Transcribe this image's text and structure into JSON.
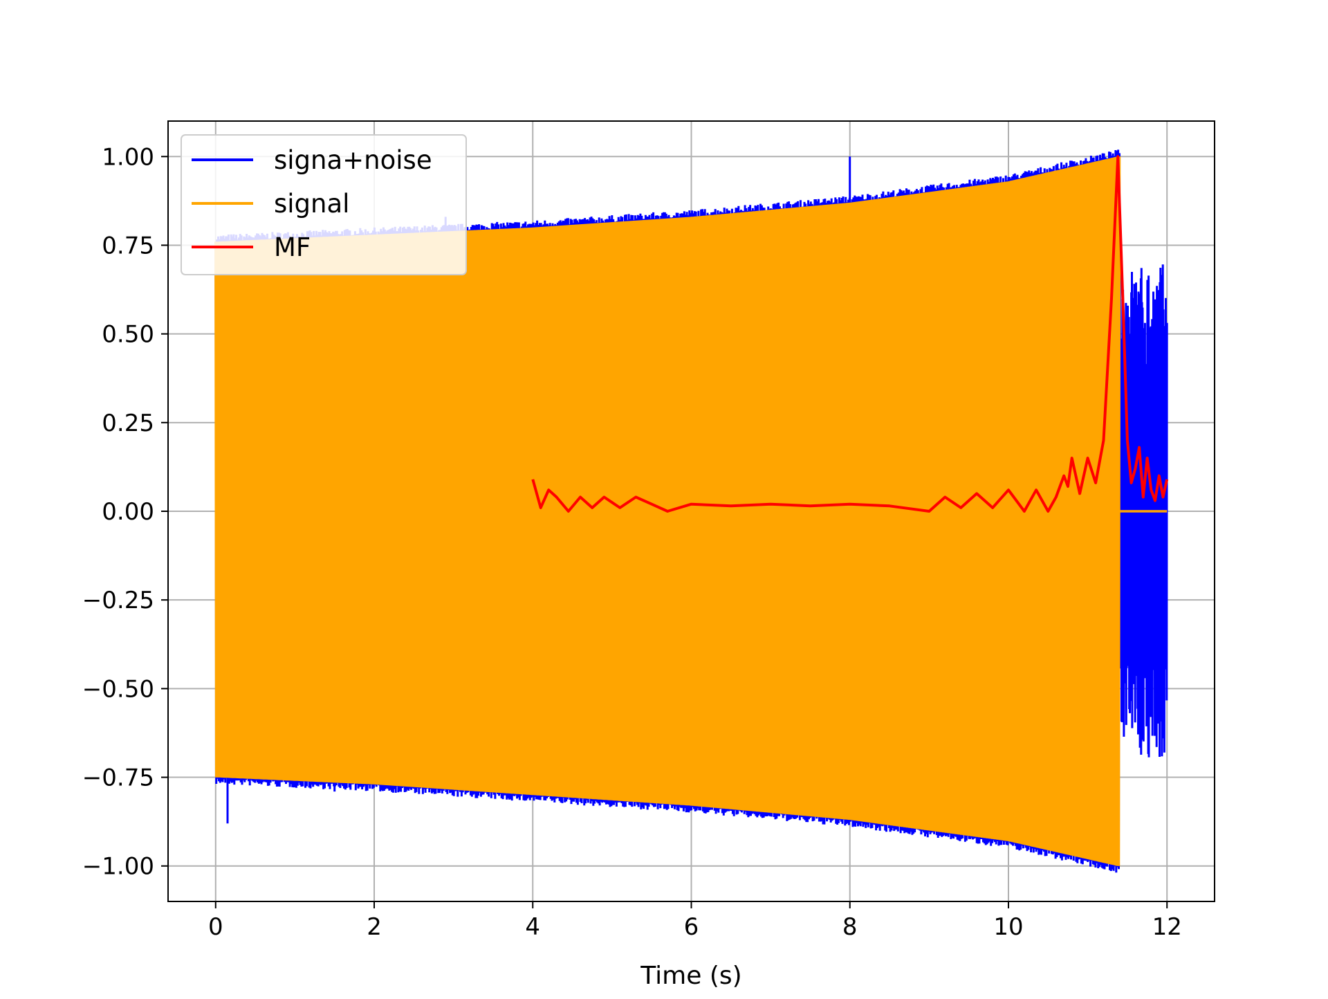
{
  "chart_data": {
    "type": "line",
    "title": "",
    "xlabel": "Time (s)",
    "ylabel": "",
    "xlim": [
      -0.6,
      12.6
    ],
    "ylim": [
      -1.1,
      1.1
    ],
    "grid": true,
    "legend_placement": "top-left",
    "x_ticks": [
      0,
      2,
      4,
      6,
      8,
      10,
      12
    ],
    "x_tick_labels": [
      "0",
      "2",
      "4",
      "6",
      "8",
      "10",
      "12"
    ],
    "y_ticks": [
      1.0,
      0.75,
      0.5,
      0.25,
      0.0,
      -0.25,
      -0.5,
      -0.75,
      -1.0
    ],
    "y_tick_labels": [
      "1.00",
      "0.75",
      "0.50",
      "0.25",
      "0.00",
      "−0.25",
      "−0.50",
      "−0.75",
      "−1.00"
    ],
    "series": [
      {
        "name": "signa+noise",
        "color": "#0000ff",
        "description_points": {
          "x": [
            0,
            0.15,
            1.5,
            2.9,
            8.0,
            11.4,
            11.45,
            11.55,
            11.65,
            11.75,
            11.85,
            11.95,
            12.0
          ],
          "y": [
            0.3,
            -0.88,
            -0.79,
            0.83,
            1.0,
            -0.88,
            0.68,
            -0.45,
            0.6,
            -0.5,
            0.5,
            -0.35,
            0.1
          ]
        }
      },
      {
        "name": "signal",
        "color": "#ffa500",
        "envelope": {
          "x": [
            0,
            2,
            4,
            6,
            8,
            10,
            11.38
          ],
          "upper": [
            0.76,
            0.78,
            0.8,
            0.83,
            0.87,
            0.93,
            1.0
          ],
          "lower": [
            -0.75,
            -0.77,
            -0.8,
            -0.83,
            -0.87,
            -0.93,
            -1.0
          ]
        },
        "after_end_value": 0.0,
        "end_x": 11.4
      },
      {
        "name": "MF",
        "color": "#ff0000",
        "x": [
          4.0,
          4.1,
          4.2,
          4.3,
          4.45,
          4.6,
          4.75,
          4.9,
          5.1,
          5.3,
          5.5,
          5.7,
          6.0,
          6.5,
          7.0,
          7.5,
          8.0,
          8.5,
          9.0,
          9.2,
          9.4,
          9.6,
          9.8,
          10.0,
          10.2,
          10.35,
          10.5,
          10.6,
          10.7,
          10.75,
          10.8,
          10.9,
          11.0,
          11.1,
          11.2,
          11.3,
          11.38,
          11.45,
          11.5,
          11.55,
          11.6,
          11.65,
          11.7,
          11.75,
          11.8,
          11.85,
          11.9,
          11.95,
          12.0
        ],
        "y": [
          0.09,
          0.01,
          0.06,
          0.04,
          0.0,
          0.04,
          0.01,
          0.04,
          0.01,
          0.04,
          0.02,
          0.0,
          0.02,
          0.015,
          0.02,
          0.015,
          0.02,
          0.015,
          0.0,
          0.04,
          0.01,
          0.05,
          0.01,
          0.06,
          0.0,
          0.06,
          0.0,
          0.04,
          0.1,
          0.07,
          0.15,
          0.05,
          0.15,
          0.08,
          0.2,
          0.6,
          1.0,
          0.55,
          0.2,
          0.08,
          0.12,
          0.18,
          0.04,
          0.15,
          0.06,
          0.03,
          0.1,
          0.04,
          0.09
        ]
      }
    ]
  }
}
